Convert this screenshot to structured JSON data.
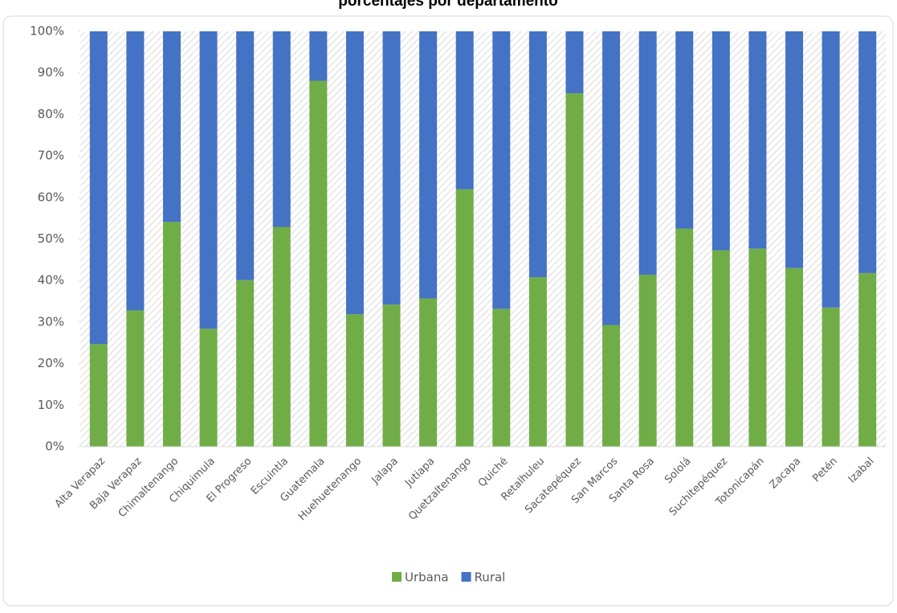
{
  "chart_data": {
    "type": "stacked_bar",
    "title": "porcentajes por departamento",
    "categories": [
      "Alta Verapaz",
      "Baja Verapaz",
      "Chimaltenango",
      "Chiquimula",
      "El Progreso",
      "Escuintla",
      "Guatemala",
      "Huehuetenango",
      "Jalapa",
      "Jutiapa",
      "Quetzaltenango",
      "Quiché",
      "Retalhuleu",
      "Sacatepéquez",
      "San Marcos",
      "Santa Rosa",
      "Sololá",
      "Suchitepéquez",
      "Totonicapán",
      "Zacapa",
      "Petén",
      "Izabal"
    ],
    "series": [
      {
        "name": "Urbana",
        "color": "#70ad47",
        "values": [
          24.7,
          32.8,
          54.1,
          28.4,
          40.1,
          52.9,
          88.1,
          31.9,
          34.2,
          35.7,
          62.0,
          33.2,
          40.8,
          85.1,
          29.3,
          41.4,
          52.5,
          47.3,
          47.7,
          43.0,
          33.5,
          41.8
        ]
      },
      {
        "name": "Rural",
        "color": "#4472c4",
        "values": [
          75.3,
          67.2,
          45.9,
          71.6,
          59.9,
          47.1,
          11.9,
          68.1,
          65.8,
          64.3,
          38.0,
          66.8,
          59.2,
          14.9,
          70.7,
          58.6,
          47.5,
          52.7,
          52.3,
          57.0,
          66.5,
          58.2
        ]
      }
    ],
    "ylim": [
      0,
      100
    ],
    "yticks": [
      {
        "value": 0,
        "label": "0%"
      },
      {
        "value": 10,
        "label": "10%"
      },
      {
        "value": 20,
        "label": "20%"
      },
      {
        "value": 30,
        "label": "30%"
      },
      {
        "value": 40,
        "label": "40%"
      },
      {
        "value": 50,
        "label": "50%"
      },
      {
        "value": 60,
        "label": "60%"
      },
      {
        "value": 70,
        "label": "70%"
      },
      {
        "value": 80,
        "label": "80%"
      },
      {
        "value": 90,
        "label": "90%"
      },
      {
        "value": 100,
        "label": "100%"
      }
    ],
    "legend": "bottom"
  }
}
